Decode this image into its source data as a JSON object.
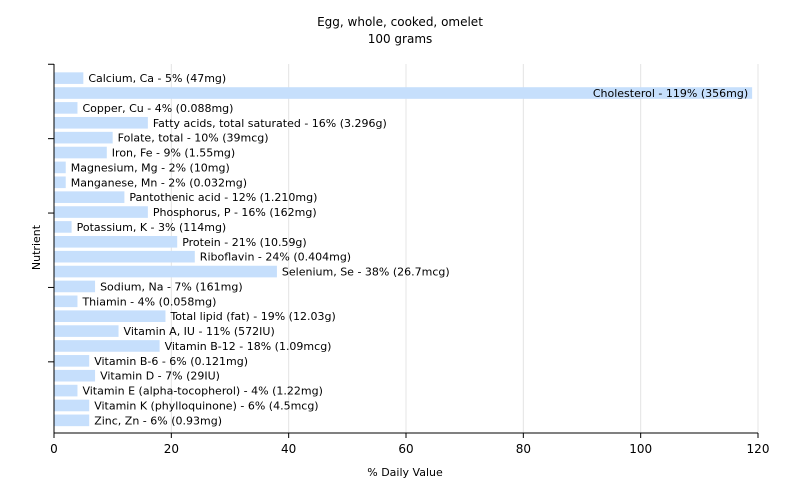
{
  "chart_data": {
    "type": "bar",
    "orientation": "horizontal",
    "title": "Egg, whole, cooked, omelet",
    "subtitle": "100 grams",
    "xlabel": "% Daily Value",
    "ylabel": "Nutrient",
    "xlim": [
      0,
      120
    ],
    "xticks": [
      0,
      20,
      40,
      60,
      80,
      100,
      120
    ],
    "grid": true,
    "bar_color": "#c6dffc",
    "grid_color": "#e4e4e4",
    "categories": [
      "Calcium, Ca",
      "Cholesterol",
      "Copper, Cu",
      "Fatty acids, total saturated",
      "Folate, total",
      "Iron, Fe",
      "Magnesium, Mg",
      "Manganese, Mn",
      "Pantothenic acid",
      "Phosphorus, P",
      "Potassium, K",
      "Protein",
      "Riboflavin",
      "Selenium, Se",
      "Sodium, Na",
      "Thiamin",
      "Total lipid (fat)",
      "Vitamin A, IU",
      "Vitamin B-12",
      "Vitamin B-6",
      "Vitamin D",
      "Vitamin E (alpha-tocopherol)",
      "Vitamin K (phylloquinone)",
      "Zinc, Zn"
    ],
    "values": [
      5,
      119,
      4,
      16,
      10,
      9,
      2,
      2,
      12,
      16,
      3,
      21,
      24,
      38,
      7,
      4,
      19,
      11,
      18,
      6,
      7,
      4,
      6,
      6
    ],
    "labels": [
      "Calcium, Ca - 5% (47mg)",
      "Cholesterol - 119% (356mg)",
      "Copper, Cu - 4% (0.088mg)",
      "Fatty acids, total saturated - 16% (3.296g)",
      "Folate, total - 10% (39mcg)",
      "Iron, Fe - 9% (1.55mg)",
      "Magnesium, Mg - 2% (10mg)",
      "Manganese, Mn - 2% (0.032mg)",
      "Pantothenic acid - 12% (1.210mg)",
      "Phosphorus, P - 16% (162mg)",
      "Potassium, K - 3% (114mg)",
      "Protein - 21% (10.59g)",
      "Riboflavin - 24% (0.404mg)",
      "Selenium, Se - 38% (26.7mcg)",
      "Sodium, Na - 7% (161mg)",
      "Thiamin - 4% (0.058mg)",
      "Total lipid (fat) - 19% (12.03g)",
      "Vitamin A, IU - 11% (572IU)",
      "Vitamin B-12 - 18% (1.09mcg)",
      "Vitamin B-6 - 6% (0.121mg)",
      "Vitamin D - 7% (29IU)",
      "Vitamin E (alpha-tocopherol) - 4% (1.22mg)",
      "Vitamin K (phylloquinone) - 6% (4.5mcg)",
      "Zinc, Zn - 6% (0.93mg)"
    ]
  }
}
